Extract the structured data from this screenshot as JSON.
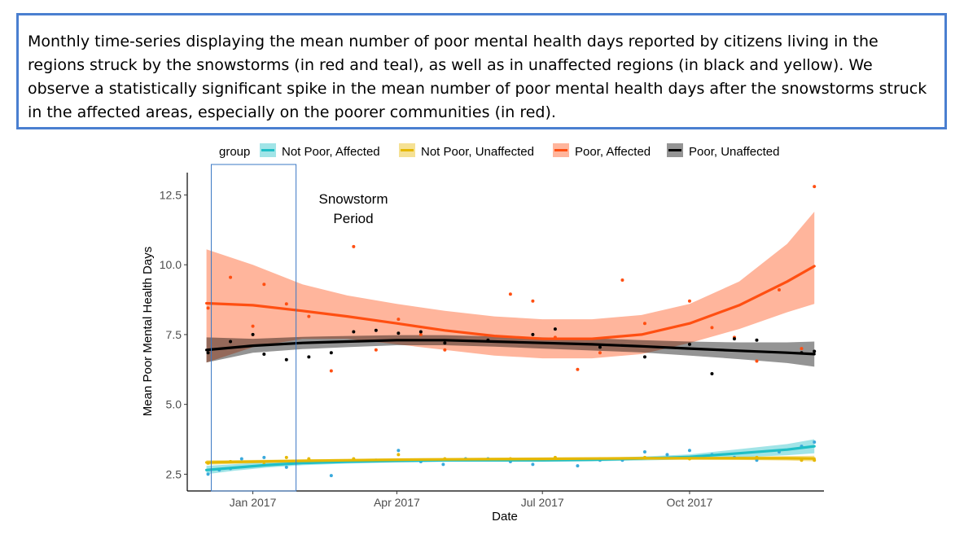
{
  "caption": "Monthly time-series displaying the mean number of poor mental health days reported by citizens living in the regions struck by the snowstorms (in red and teal), as well as in unaffected regions (in black and yellow). We observe a statistically significant spike in the mean number of poor mental health days after the snowstorms struck in the affected areas, especially on the poorer communities (in red).",
  "chart_data": {
    "type": "scatter",
    "title": "",
    "xlabel": "Date",
    "ylabel": "Mean Poor Mental Health Days",
    "x_ticks": [
      "Jan 2017",
      "Apr 2017",
      "Jul 2017",
      "Oct 2017"
    ],
    "y_ticks": [
      "2.5",
      "5.0",
      "7.5",
      "10.0",
      "12.5"
    ],
    "xlim": [
      "2016-11-21",
      "2017-12-24"
    ],
    "ylim": [
      1.9,
      13.3
    ],
    "grid": false,
    "legend": {
      "title": "group",
      "position": "top"
    },
    "annotation": {
      "text": [
        "Snowstorm",
        "Period"
      ],
      "x_start": "2016-12-06",
      "x_end": "2017-01-28"
    },
    "series": [
      {
        "name": "Not Poor, Affected",
        "color": "#1fbfc6",
        "point_color": "#3aa9dc",
        "points": [
          [
            "2016-12-04",
            2.5
          ],
          [
            "2016-12-11",
            2.65
          ],
          [
            "2016-12-18",
            2.7
          ],
          [
            "2016-12-25",
            3.05
          ],
          [
            "2017-01-08",
            3.1
          ],
          [
            "2017-01-22",
            2.75
          ],
          [
            "2017-02-05",
            3.0
          ],
          [
            "2017-02-19",
            2.45
          ],
          [
            "2017-03-05",
            3.0
          ],
          [
            "2017-03-19",
            3.0
          ],
          [
            "2017-04-02",
            3.35
          ],
          [
            "2017-04-16",
            2.95
          ],
          [
            "2017-04-30",
            2.85
          ],
          [
            "2017-05-14",
            3.05
          ],
          [
            "2017-05-28",
            3.05
          ],
          [
            "2017-06-11",
            2.95
          ],
          [
            "2017-06-25",
            2.85
          ],
          [
            "2017-07-09",
            3.05
          ],
          [
            "2017-07-23",
            2.8
          ],
          [
            "2017-08-06",
            3.0
          ],
          [
            "2017-08-20",
            3.0
          ],
          [
            "2017-09-03",
            3.3
          ],
          [
            "2017-09-17",
            3.2
          ],
          [
            "2017-10-01",
            3.35
          ],
          [
            "2017-10-15",
            3.2
          ],
          [
            "2017-10-29",
            3.1
          ],
          [
            "2017-11-12",
            3.0
          ],
          [
            "2017-11-26",
            3.3
          ],
          [
            "2017-12-10",
            3.5
          ],
          [
            "2017-12-18",
            3.65
          ]
        ],
        "fit": [
          [
            "2016-12-03",
            2.65
          ],
          [
            "2016-12-20",
            2.73
          ],
          [
            "2017-01-10",
            2.83
          ],
          [
            "2017-02-01",
            2.9
          ],
          [
            "2017-03-01",
            2.95
          ],
          [
            "2017-04-01",
            2.98
          ],
          [
            "2017-05-01",
            3.0
          ],
          [
            "2017-06-01",
            3.0
          ],
          [
            "2017-07-01",
            3.0
          ],
          [
            "2017-08-01",
            3.02
          ],
          [
            "2017-09-01",
            3.06
          ],
          [
            "2017-10-01",
            3.12
          ],
          [
            "2017-11-01",
            3.25
          ],
          [
            "2017-12-01",
            3.38
          ],
          [
            "2017-12-18",
            3.5
          ]
        ],
        "band": [
          [
            2.5,
            2.8
          ],
          [
            2.62,
            2.86
          ],
          [
            2.74,
            2.94
          ],
          [
            2.82,
            2.98
          ],
          [
            2.88,
            3.02
          ],
          [
            2.92,
            3.04
          ],
          [
            2.94,
            3.06
          ],
          [
            2.94,
            3.06
          ],
          [
            2.94,
            3.06
          ],
          [
            2.96,
            3.08
          ],
          [
            2.99,
            3.13
          ],
          [
            3.03,
            3.21
          ],
          [
            3.1,
            3.4
          ],
          [
            3.18,
            3.58
          ],
          [
            3.25,
            3.75
          ]
        ]
      },
      {
        "name": "Not Poor, Unaffected",
        "color": "#e6b800",
        "point_color": "#e6b800",
        "points": [
          [
            "2016-12-04",
            2.9
          ],
          [
            "2016-12-18",
            2.95
          ],
          [
            "2017-01-08",
            2.85
          ],
          [
            "2017-01-22",
            3.1
          ],
          [
            "2017-02-05",
            3.05
          ],
          [
            "2017-03-05",
            3.05
          ],
          [
            "2017-04-02",
            3.2
          ],
          [
            "2017-05-01",
            3.05
          ],
          [
            "2017-06-11",
            3.05
          ],
          [
            "2017-07-09",
            3.1
          ],
          [
            "2017-08-06",
            3.05
          ],
          [
            "2017-09-03",
            3.1
          ],
          [
            "2017-10-01",
            3.05
          ],
          [
            "2017-11-12",
            3.1
          ],
          [
            "2017-12-10",
            3.0
          ],
          [
            "2017-12-18",
            3.0
          ]
        ],
        "fit": [
          [
            "2016-12-03",
            2.92
          ],
          [
            "2017-01-01",
            2.95
          ],
          [
            "2017-02-01",
            2.98
          ],
          [
            "2017-03-01",
            3.0
          ],
          [
            "2017-04-01",
            3.02
          ],
          [
            "2017-05-01",
            3.03
          ],
          [
            "2017-06-01",
            3.04
          ],
          [
            "2017-07-01",
            3.05
          ],
          [
            "2017-08-01",
            3.06
          ],
          [
            "2017-09-01",
            3.07
          ],
          [
            "2017-10-01",
            3.07
          ],
          [
            "2017-11-01",
            3.07
          ],
          [
            "2017-12-01",
            3.07
          ],
          [
            "2017-12-18",
            3.06
          ]
        ],
        "band": [
          [
            2.84,
            3.0
          ],
          [
            2.89,
            3.01
          ],
          [
            2.93,
            3.03
          ],
          [
            2.95,
            3.05
          ],
          [
            2.97,
            3.07
          ],
          [
            2.98,
            3.08
          ],
          [
            2.99,
            3.09
          ],
          [
            3.0,
            3.1
          ],
          [
            3.01,
            3.11
          ],
          [
            3.02,
            3.12
          ],
          [
            3.02,
            3.12
          ],
          [
            3.01,
            3.13
          ],
          [
            2.99,
            3.15
          ],
          [
            2.96,
            3.16
          ]
        ]
      },
      {
        "name": "Poor, Affected",
        "color": "#ff4f12",
        "point_color": "#ff4f12",
        "points": [
          [
            "2016-12-04",
            8.45
          ],
          [
            "2016-12-18",
            9.55
          ],
          [
            "2017-01-01",
            7.8
          ],
          [
            "2017-01-08",
            9.3
          ],
          [
            "2017-01-22",
            8.6
          ],
          [
            "2017-02-05",
            8.15
          ],
          [
            "2017-02-19",
            6.2
          ],
          [
            "2017-03-05",
            10.65
          ],
          [
            "2017-03-19",
            6.95
          ],
          [
            "2017-04-02",
            8.05
          ],
          [
            "2017-04-16",
            7.5
          ],
          [
            "2017-05-01",
            6.95
          ],
          [
            "2017-05-28",
            7.3
          ],
          [
            "2017-06-11",
            8.95
          ],
          [
            "2017-06-25",
            8.7
          ],
          [
            "2017-07-09",
            7.4
          ],
          [
            "2017-07-23",
            6.25
          ],
          [
            "2017-08-06",
            6.85
          ],
          [
            "2017-08-20",
            9.45
          ],
          [
            "2017-09-03",
            7.9
          ],
          [
            "2017-10-01",
            8.7
          ],
          [
            "2017-10-15",
            7.75
          ],
          [
            "2017-10-29",
            7.4
          ],
          [
            "2017-11-12",
            6.55
          ],
          [
            "2017-11-26",
            9.1
          ],
          [
            "2017-12-10",
            7.0
          ],
          [
            "2017-12-18",
            12.8
          ]
        ],
        "fit": [
          [
            "2016-12-03",
            8.62
          ],
          [
            "2017-01-01",
            8.55
          ],
          [
            "2017-02-01",
            8.35
          ],
          [
            "2017-03-01",
            8.15
          ],
          [
            "2017-04-01",
            7.9
          ],
          [
            "2017-05-01",
            7.65
          ],
          [
            "2017-06-01",
            7.45
          ],
          [
            "2017-07-01",
            7.35
          ],
          [
            "2017-08-01",
            7.35
          ],
          [
            "2017-09-01",
            7.5
          ],
          [
            "2017-10-01",
            7.9
          ],
          [
            "2017-11-01",
            8.55
          ],
          [
            "2017-12-01",
            9.4
          ],
          [
            "2017-12-18",
            9.95
          ]
        ],
        "band": [
          [
            6.5,
            10.55
          ],
          [
            7.05,
            10.0
          ],
          [
            7.35,
            9.3
          ],
          [
            7.35,
            8.9
          ],
          [
            7.15,
            8.6
          ],
          [
            6.95,
            8.35
          ],
          [
            6.75,
            8.15
          ],
          [
            6.65,
            8.05
          ],
          [
            6.65,
            8.05
          ],
          [
            6.8,
            8.2
          ],
          [
            7.2,
            8.6
          ],
          [
            7.7,
            9.4
          ],
          [
            8.3,
            10.75
          ],
          [
            8.6,
            11.9
          ]
        ]
      },
      {
        "name": "Poor, Unaffected",
        "color": "#000000",
        "point_color": "#000000",
        "points": [
          [
            "2016-12-04",
            6.85
          ],
          [
            "2016-12-18",
            7.25
          ],
          [
            "2017-01-01",
            7.5
          ],
          [
            "2017-01-08",
            6.8
          ],
          [
            "2017-01-22",
            6.6
          ],
          [
            "2017-02-05",
            6.7
          ],
          [
            "2017-02-19",
            6.85
          ],
          [
            "2017-03-05",
            7.6
          ],
          [
            "2017-03-19",
            7.65
          ],
          [
            "2017-04-02",
            7.55
          ],
          [
            "2017-04-16",
            7.6
          ],
          [
            "2017-05-01",
            7.2
          ],
          [
            "2017-05-28",
            7.3
          ],
          [
            "2017-06-25",
            7.5
          ],
          [
            "2017-07-09",
            7.7
          ],
          [
            "2017-08-06",
            7.05
          ],
          [
            "2017-09-03",
            6.7
          ],
          [
            "2017-10-01",
            7.15
          ],
          [
            "2017-10-15",
            6.1
          ],
          [
            "2017-10-29",
            7.35
          ],
          [
            "2017-11-12",
            7.3
          ],
          [
            "2017-12-10",
            6.85
          ],
          [
            "2017-12-18",
            6.9
          ]
        ],
        "fit": [
          [
            "2016-12-03",
            6.95
          ],
          [
            "2017-01-01",
            7.1
          ],
          [
            "2017-02-01",
            7.2
          ],
          [
            "2017-03-01",
            7.25
          ],
          [
            "2017-04-01",
            7.3
          ],
          [
            "2017-05-01",
            7.3
          ],
          [
            "2017-06-01",
            7.25
          ],
          [
            "2017-07-01",
            7.2
          ],
          [
            "2017-08-01",
            7.15
          ],
          [
            "2017-09-01",
            7.08
          ],
          [
            "2017-10-01",
            7.0
          ],
          [
            "2017-11-01",
            6.92
          ],
          [
            "2017-12-01",
            6.85
          ],
          [
            "2017-12-18",
            6.8
          ]
        ],
        "band": [
          [
            6.5,
            7.4
          ],
          [
            6.85,
            7.35
          ],
          [
            6.98,
            7.42
          ],
          [
            7.05,
            7.45
          ],
          [
            7.12,
            7.48
          ],
          [
            7.12,
            7.48
          ],
          [
            7.07,
            7.43
          ],
          [
            7.0,
            7.4
          ],
          [
            6.93,
            7.37
          ],
          [
            6.86,
            7.3
          ],
          [
            6.75,
            7.25
          ],
          [
            6.62,
            7.22
          ],
          [
            6.48,
            7.22
          ],
          [
            6.35,
            7.25
          ]
        ]
      }
    ]
  }
}
